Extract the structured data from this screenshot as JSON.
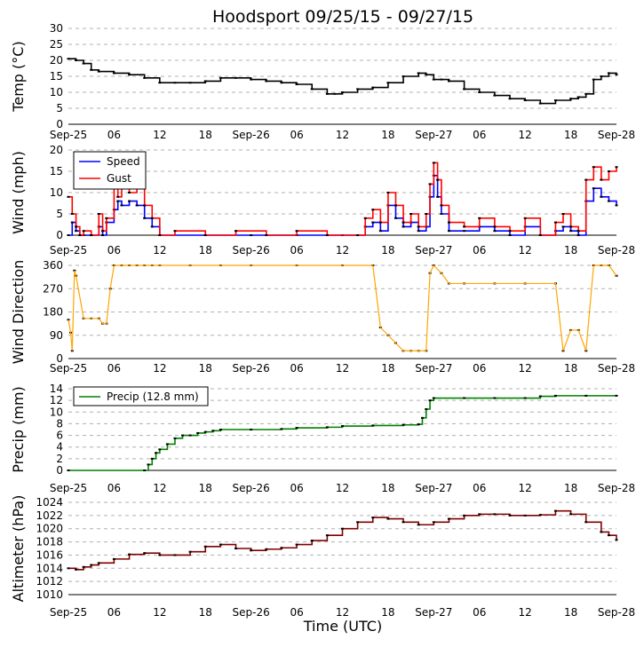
{
  "title": "Hoodsport 09/25/15 - 09/27/15",
  "xlabel": "Time (UTC)",
  "time_ticks": [
    "Sep-25",
    "06",
    "12",
    "18",
    "Sep-26",
    "06",
    "12",
    "18",
    "Sep-27",
    "06",
    "12",
    "18",
    "Sep-28"
  ],
  "colors": {
    "temp": "#000000",
    "speed": "#0000ff",
    "gust": "#ff0000",
    "direction": "#ffa500",
    "precip": "#008000",
    "altimeter": "#800000",
    "grid": "#b0b0b0"
  },
  "chart_data": [
    {
      "type": "line",
      "ylabel": "Temp (°C)",
      "ylim": [
        0,
        30
      ],
      "yticks": [
        0,
        5,
        10,
        15,
        20,
        25,
        30
      ],
      "xlim_hours": [
        0,
        72
      ],
      "series": [
        {
          "name": "Temp",
          "color": "#000000",
          "x": [
            0,
            1,
            2,
            3,
            4,
            6,
            8,
            10,
            12,
            14,
            16,
            18,
            20,
            22,
            24,
            26,
            28,
            30,
            32,
            34,
            35,
            36,
            38,
            40,
            42,
            44,
            46,
            47,
            48,
            49,
            50,
            52,
            54,
            56,
            58,
            60,
            62,
            64,
            66,
            67,
            68,
            69,
            70,
            71,
            72
          ],
          "y": [
            20.5,
            20,
            19,
            17,
            16.5,
            16,
            15.5,
            14.5,
            13,
            13,
            13,
            13.5,
            14.5,
            14.5,
            14,
            13.5,
            13,
            12.5,
            11,
            9.5,
            9.5,
            10,
            11,
            11.5,
            13,
            15,
            16,
            15.5,
            14,
            14,
            13.5,
            11,
            10,
            9,
            8,
            7.5,
            6.5,
            7.5,
            8,
            8.5,
            9.5,
            14,
            15,
            16,
            15.5
          ]
        }
      ]
    },
    {
      "type": "line",
      "ylabel": "Wind (mph)",
      "ylim": [
        0,
        20
      ],
      "yticks": [
        0,
        5,
        10,
        15,
        20
      ],
      "xlim_hours": [
        0,
        72
      ],
      "legend": [
        "Speed",
        "Gust"
      ],
      "series": [
        {
          "name": "Speed",
          "color": "#0000ff",
          "x": [
            0,
            0.5,
            1,
            1.5,
            2,
            3,
            4,
            4.5,
            5,
            6,
            6.5,
            7,
            8,
            9,
            10,
            11,
            12,
            18,
            24,
            30,
            36,
            38,
            39,
            40,
            41,
            42,
            43,
            44,
            45,
            46,
            47,
            47.5,
            48,
            48.5,
            49,
            50,
            52,
            54,
            56,
            58,
            60,
            62,
            64,
            65,
            66,
            67,
            68,
            69,
            70,
            71,
            72
          ],
          "y": [
            0,
            3,
            1,
            0,
            0,
            0,
            2,
            0,
            3,
            6,
            8,
            7,
            8,
            7,
            4,
            2,
            0,
            0,
            0,
            0,
            0,
            0,
            2,
            3,
            1,
            7,
            4,
            2,
            3,
            1,
            2,
            9,
            14,
            9,
            5,
            1,
            1,
            2,
            1,
            0,
            2,
            0,
            1,
            2,
            1,
            0,
            8,
            11,
            9,
            8,
            7
          ]
        },
        {
          "name": "Gust",
          "color": "#ff0000",
          "x": [
            0,
            0.5,
            1,
            1.5,
            2,
            3,
            4,
            4.5,
            5,
            6,
            6.5,
            7,
            8,
            9,
            10,
            11,
            12,
            14,
            18,
            22,
            26,
            30,
            34,
            38,
            39,
            40,
            41,
            42,
            43,
            44,
            45,
            46,
            47,
            47.5,
            48,
            48.5,
            49,
            50,
            52,
            54,
            56,
            58,
            60,
            62,
            64,
            65,
            66,
            67,
            68,
            69,
            70,
            71,
            72
          ],
          "y": [
            9,
            5,
            2,
            0,
            1,
            0,
            5,
            1,
            4,
            11,
            9,
            12,
            10,
            11,
            7,
            4,
            0,
            1,
            0,
            1,
            0,
            1,
            0,
            0,
            4,
            6,
            3,
            10,
            7,
            3,
            5,
            2,
            5,
            12,
            17,
            13,
            7,
            3,
            2,
            4,
            2,
            1,
            4,
            0,
            3,
            5,
            2,
            1,
            13,
            16,
            13,
            15,
            16
          ]
        }
      ]
    },
    {
      "type": "scatter",
      "ylabel": "Wind Direction",
      "ylim": [
        0,
        360
      ],
      "yticks": [
        0,
        90,
        180,
        270,
        360
      ],
      "xlim_hours": [
        0,
        72
      ],
      "series": [
        {
          "name": "Direction",
          "color": "#ffa500",
          "x": [
            0,
            0.3,
            0.5,
            0.8,
            1,
            2,
            3,
            4,
            4.5,
            5,
            5.5,
            6,
            7,
            8,
            9,
            10,
            11,
            12,
            16,
            20,
            24,
            30,
            36,
            40,
            41,
            42,
            43,
            44,
            45,
            46,
            47,
            47.5,
            48,
            49,
            50,
            52,
            56,
            60,
            64,
            65,
            66,
            67,
            68,
            69,
            70,
            71,
            72
          ],
          "y": [
            150,
            100,
            30,
            340,
            320,
            155,
            155,
            155,
            135,
            135,
            270,
            360,
            360,
            360,
            360,
            360,
            360,
            360,
            360,
            360,
            360,
            360,
            360,
            360,
            120,
            90,
            60,
            30,
            30,
            30,
            30,
            330,
            360,
            330,
            290,
            290,
            290,
            290,
            290,
            30,
            110,
            110,
            30,
            360,
            360,
            360,
            320
          ]
        }
      ]
    },
    {
      "type": "line",
      "ylabel": "Precip (mm)",
      "ylim": [
        0,
        14
      ],
      "yticks": [
        0,
        2,
        4,
        6,
        8,
        10,
        12,
        14
      ],
      "xlim_hours": [
        0,
        72
      ],
      "legend": [
        "Precip (12.8 mm)"
      ],
      "series": [
        {
          "name": "Precip (12.8 mm)",
          "color": "#008000",
          "x": [
            0,
            10,
            10.5,
            11,
            11.5,
            12,
            13,
            14,
            15,
            16,
            17,
            18,
            19,
            20,
            24,
            28,
            30,
            34,
            36,
            40,
            44,
            46,
            46.5,
            47,
            47.5,
            48,
            52,
            56,
            60,
            62,
            64,
            68,
            72
          ],
          "y": [
            0,
            0,
            1,
            2,
            3,
            3.6,
            4.5,
            5.5,
            6,
            6,
            6.4,
            6.6,
            6.8,
            7,
            7,
            7.1,
            7.3,
            7.4,
            7.6,
            7.7,
            7.8,
            7.9,
            9,
            10.5,
            12,
            12.4,
            12.4,
            12.4,
            12.4,
            12.7,
            12.8,
            12.8,
            12.8
          ]
        }
      ]
    },
    {
      "type": "line",
      "ylabel": "Altimeter (hPa)",
      "ylim": [
        1010,
        1024
      ],
      "yticks": [
        1010,
        1012,
        1014,
        1016,
        1018,
        1020,
        1022,
        1024
      ],
      "xlim_hours": [
        0,
        72
      ],
      "series": [
        {
          "name": "Altimeter",
          "color": "#800000",
          "x": [
            0,
            1,
            2,
            3,
            4,
            6,
            8,
            10,
            12,
            14,
            16,
            18,
            20,
            22,
            24,
            26,
            28,
            30,
            32,
            34,
            36,
            38,
            40,
            42,
            44,
            46,
            48,
            50,
            52,
            54,
            56,
            58,
            60,
            62,
            64,
            66,
            68,
            70,
            71,
            72
          ],
          "y": [
            1014,
            1013.8,
            1014.2,
            1014.5,
            1014.8,
            1015.4,
            1016.1,
            1016.3,
            1016,
            1016,
            1016.5,
            1017.3,
            1017.6,
            1017,
            1016.7,
            1016.9,
            1017.1,
            1017.6,
            1018.2,
            1019,
            1020,
            1021,
            1021.7,
            1021.5,
            1021,
            1020.6,
            1021,
            1021.5,
            1022,
            1022.2,
            1022.2,
            1022,
            1022,
            1022.1,
            1022.7,
            1022.2,
            1021,
            1019.5,
            1019,
            1018.3
          ]
        }
      ]
    }
  ]
}
